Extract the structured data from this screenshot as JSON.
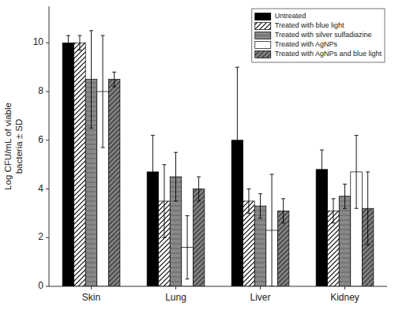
{
  "chart_data": {
    "type": "bar",
    "y_label": "Log CFU/mL of viable\nbacteria ± SD",
    "categories": [
      "Skin",
      "Lung",
      "Liver",
      "Kidney"
    ],
    "series": [
      {
        "name": "Untreated",
        "color": "black",
        "values": [
          10.0,
          4.7,
          6.0,
          4.8
        ],
        "errors": [
          0.3,
          1.5,
          3.0,
          0.8
        ]
      },
      {
        "name": "Treated with blue light",
        "color": "white",
        "values": [
          10.0,
          3.5,
          3.5,
          3.1
        ],
        "errors": [
          0.3,
          1.5,
          0.5,
          0.5
        ]
      },
      {
        "name": "Treated with silver sulfadiazine",
        "color": "#888888",
        "values": [
          8.5,
          4.5,
          3.3,
          3.7
        ],
        "errors": [
          2.0,
          1.0,
          0.5,
          0.5
        ]
      },
      {
        "name": "Treated with AgNPs",
        "color": "white",
        "values": [
          8.0,
          1.6,
          2.3,
          4.7
        ],
        "errors": [
          2.3,
          1.3,
          2.3,
          1.5
        ]
      },
      {
        "name": "Treated with AgNPs and blue light",
        "color": "#555555",
        "values": [
          8.5,
          4.0,
          3.1,
          3.2
        ],
        "errors": [
          0.3,
          0.5,
          0.5,
          1.5
        ]
      }
    ],
    "ylim": [
      0,
      11.5
    ],
    "yticks": [
      0,
      2,
      4,
      6,
      8,
      10
    ],
    "grid": false,
    "legend": "upper right"
  }
}
